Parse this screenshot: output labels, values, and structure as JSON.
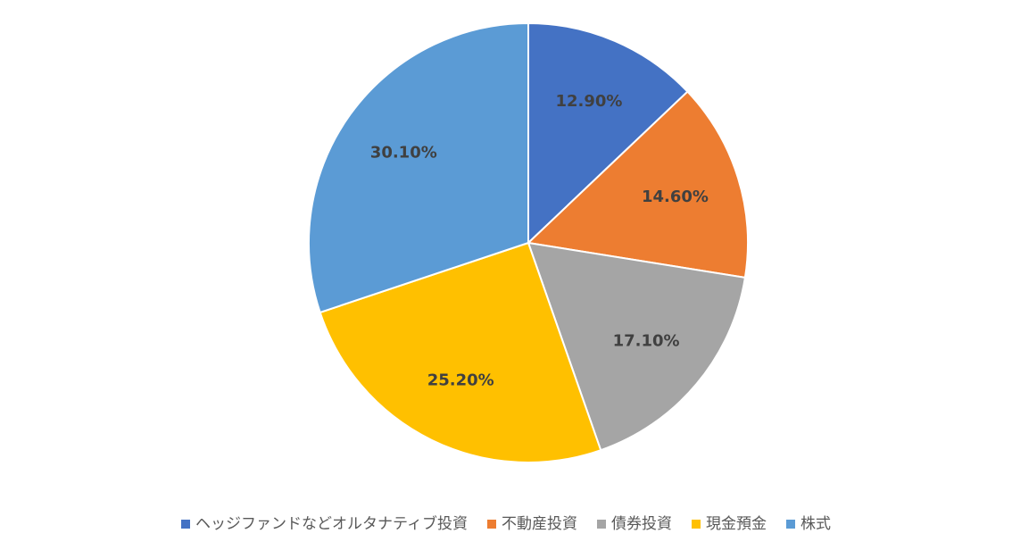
{
  "chart_data": {
    "type": "pie",
    "title": "",
    "categories": [
      "ヘッジファンドなどオルタナティブ投資",
      "不動産投資",
      "債券投資",
      "現金預金",
      "株式"
    ],
    "values": [
      12.9,
      14.6,
      17.1,
      25.2,
      30.1
    ],
    "data_labels": [
      "12.90%",
      "14.60%",
      "17.10%",
      "25.20%",
      "30.10%"
    ],
    "colors": [
      "#4472C4",
      "#ED7D31",
      "#A5A5A5",
      "#FFC000",
      "#5B9BD5"
    ],
    "legend_position": "bottom",
    "start_angle": "12 o'clock",
    "direction": "clockwise"
  }
}
